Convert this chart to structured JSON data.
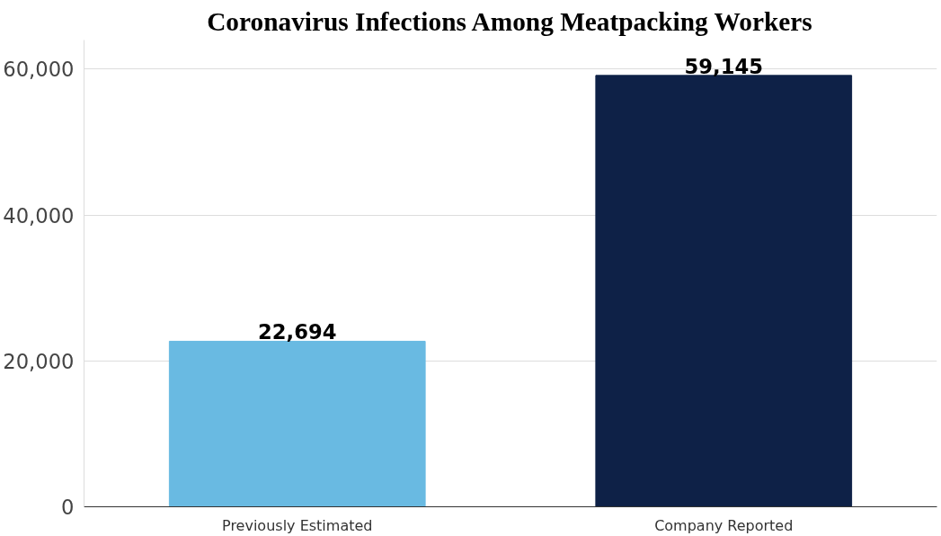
{
  "chart_data": {
    "type": "bar",
    "title": "Coronavirus Infections Among Meatpacking Workers",
    "categories": [
      "Previously Estimated",
      "Company Reported"
    ],
    "values": [
      22694,
      59145
    ],
    "colors": [
      "#69bae2",
      "#0e2147"
    ],
    "ylim": [
      0,
      64000
    ],
    "yticks": [
      0,
      {
        "value": 20000,
        "label": "20,000"
      },
      {
        "value": 40000,
        "label": "40,000"
      },
      {
        "value": 60000,
        "label": "60,000"
      }
    ],
    "grid": "y",
    "data_labels": true,
    "value_labels": [
      "22,694",
      "59,145"
    ]
  }
}
